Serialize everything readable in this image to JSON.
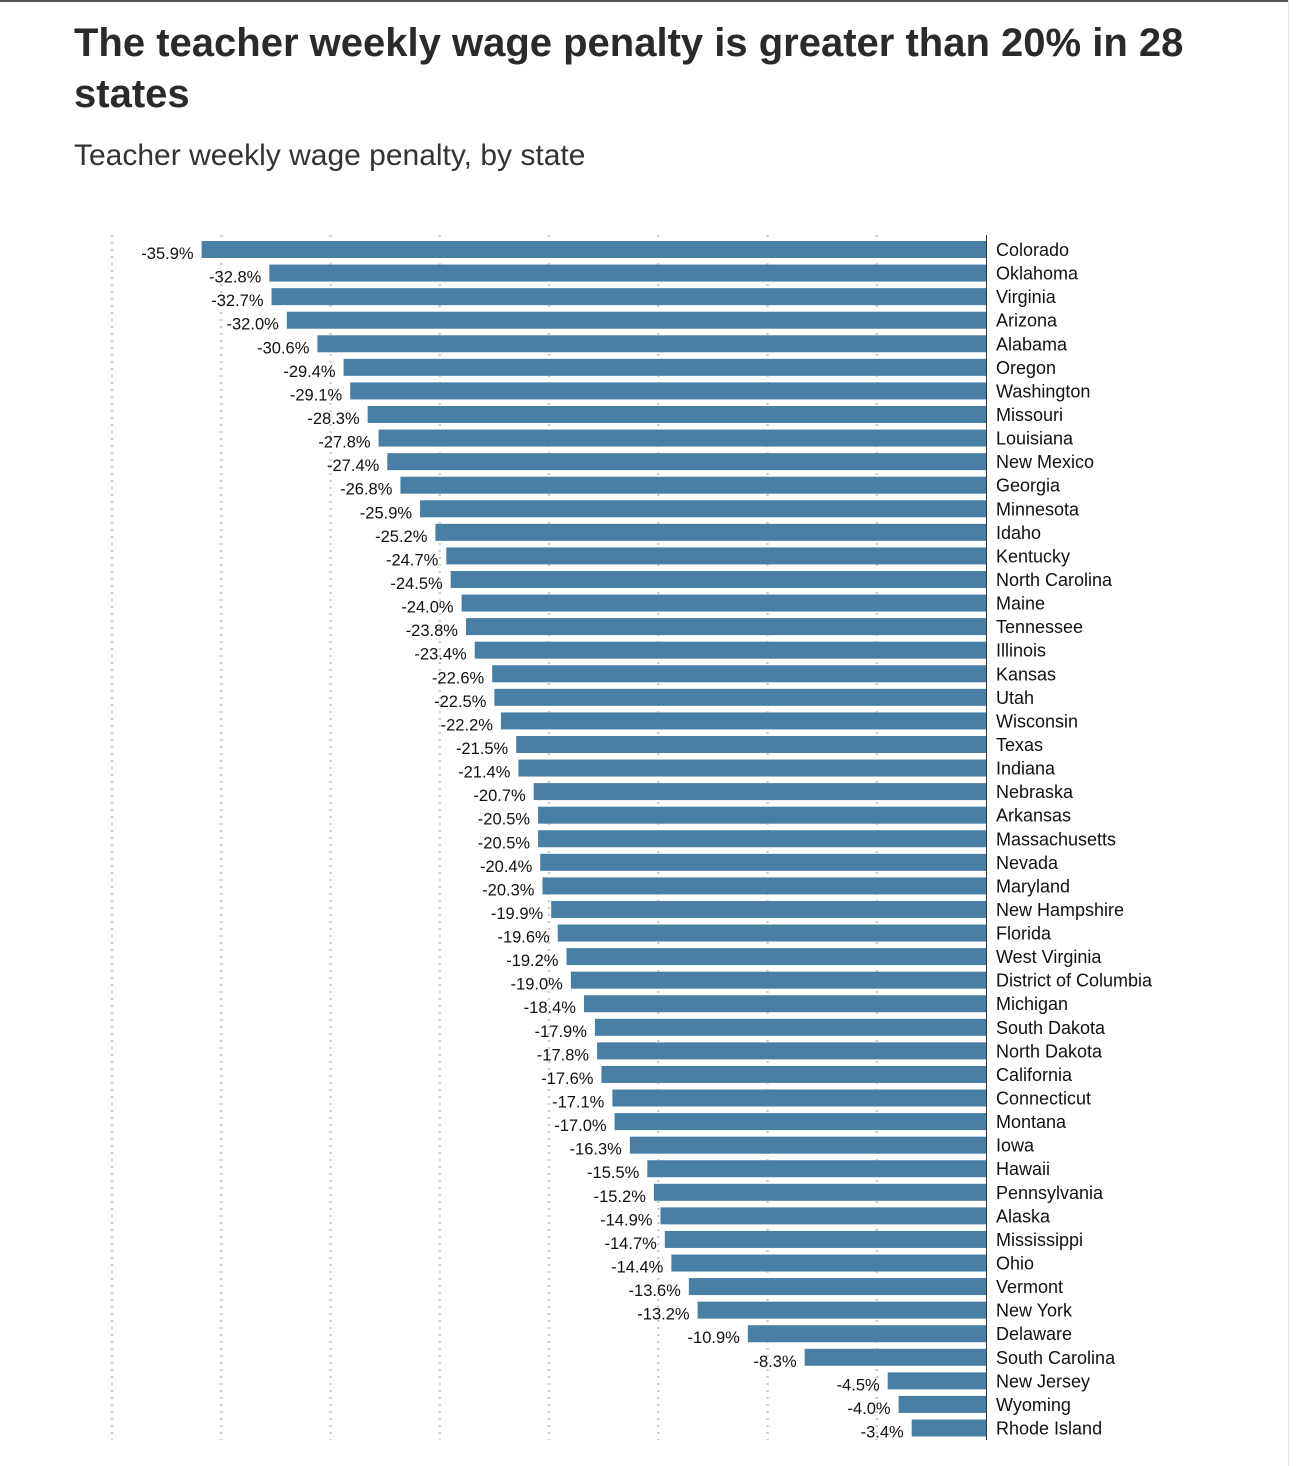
{
  "title": "The teacher weekly wage penalty is greater than 20% in 28 states",
  "subtitle": "Teacher weekly wage penalty, by state",
  "colors": {
    "bar": "#4a7fa5",
    "text": "#111111",
    "grid": "#cfcfcf"
  },
  "chart_data": {
    "type": "bar",
    "orientation": "horizontal",
    "title": "The teacher weekly wage penalty is greater than 20% in 28 states",
    "subtitle": "Teacher weekly wage penalty, by state",
    "xlabel": "",
    "ylabel": "",
    "xlim": [
      -40,
      0
    ],
    "grid": true,
    "legend": "none",
    "categories": [
      "Colorado",
      "Oklahoma",
      "Virginia",
      "Arizona",
      "Alabama",
      "Oregon",
      "Washington",
      "Missouri",
      "Louisiana",
      "New Mexico",
      "Georgia",
      "Minnesota",
      "Idaho",
      "Kentucky",
      "North Carolina",
      "Maine",
      "Tennessee",
      "Illinois",
      "Kansas",
      "Utah",
      "Wisconsin",
      "Texas",
      "Indiana",
      "Nebraska",
      "Arkansas",
      "Massachusetts",
      "Nevada",
      "Maryland",
      "New Hampshire",
      "Florida",
      "West Virginia",
      "District of Columbia",
      "Michigan",
      "South Dakota",
      "North Dakota",
      "California",
      "Connecticut",
      "Montana",
      "Iowa",
      "Hawaii",
      "Pennsylvania",
      "Alaska",
      "Mississippi",
      "Ohio",
      "Vermont",
      "New York",
      "Delaware",
      "South Carolina",
      "New Jersey",
      "Wyoming",
      "Rhode Island"
    ],
    "values": [
      -35.9,
      -32.8,
      -32.7,
      -32.0,
      -30.6,
      -29.4,
      -29.1,
      -28.3,
      -27.8,
      -27.4,
      -26.8,
      -25.9,
      -25.2,
      -24.7,
      -24.5,
      -24.0,
      -23.8,
      -23.4,
      -22.6,
      -22.5,
      -22.2,
      -21.5,
      -21.4,
      -20.7,
      -20.5,
      -20.5,
      -20.4,
      -20.3,
      -19.9,
      -19.6,
      -19.2,
      -19.0,
      -18.4,
      -17.9,
      -17.8,
      -17.6,
      -17.1,
      -17.0,
      -16.3,
      -15.5,
      -15.2,
      -14.9,
      -14.7,
      -14.4,
      -13.6,
      -13.2,
      -10.9,
      -8.3,
      -4.5,
      -4.0,
      -3.4
    ],
    "value_labels": [
      "-35.9%",
      "-32.8%",
      "-32.7%",
      "-32.0%",
      "-30.6%",
      "-29.4%",
      "-29.1%",
      "-28.3%",
      "-27.8%",
      "-27.4%",
      "-26.8%",
      "-25.9%",
      "-25.2%",
      "-24.7%",
      "-24.5%",
      "-24.0%",
      "-23.8%",
      "-23.4%",
      "-22.6%",
      "-22.5%",
      "-22.2%",
      "-21.5%",
      "-21.4%",
      "-20.7%",
      "-20.5%",
      "-20.5%",
      "-20.4%",
      "-20.3%",
      "-19.9%",
      "-19.6%",
      "-19.2%",
      "-19.0%",
      "-18.4%",
      "-17.9%",
      "-17.8%",
      "-17.6%",
      "-17.1%",
      "-17.0%",
      "-16.3%",
      "-15.5%",
      "-15.2%",
      "-14.9%",
      "-14.7%",
      "-14.4%",
      "-13.6%",
      "-13.2%",
      "-10.9%",
      "-8.3%",
      "-4.5%",
      "-4.0%",
      "-3.4%"
    ]
  }
}
